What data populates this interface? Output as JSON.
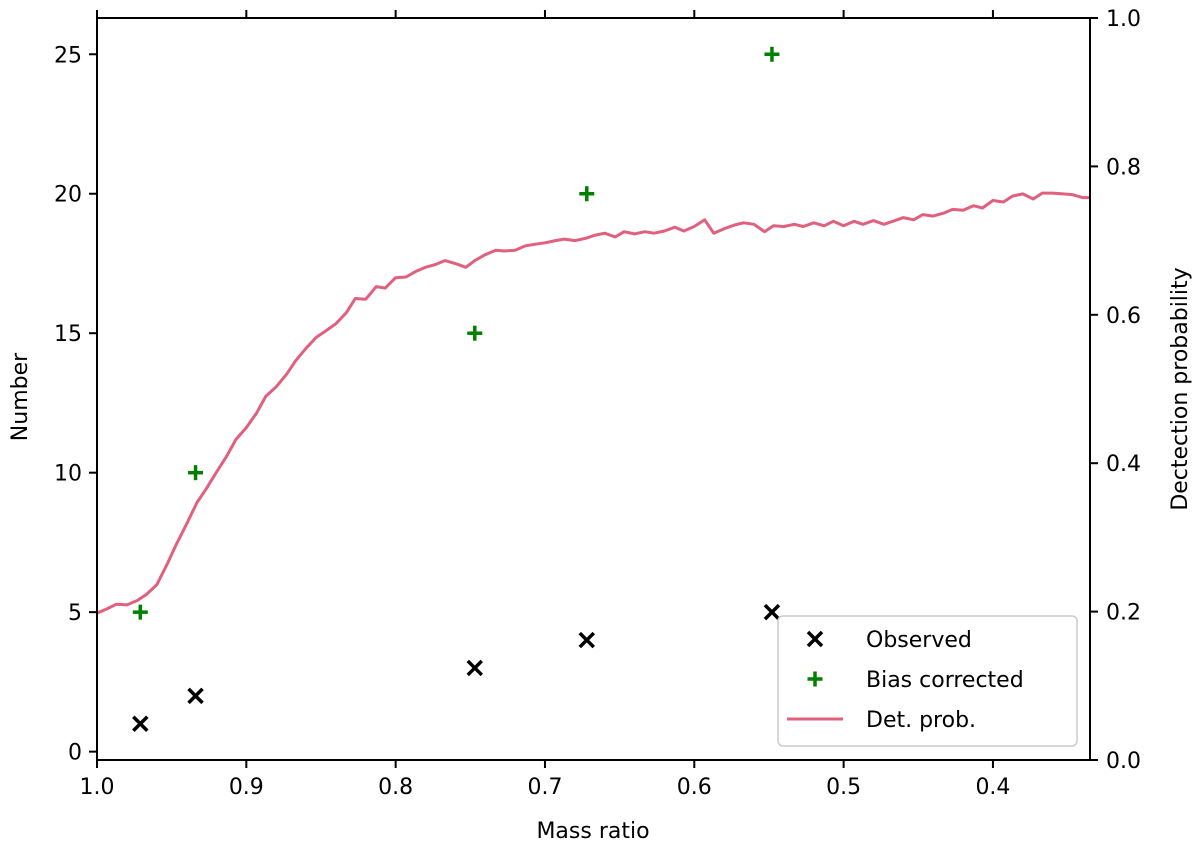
{
  "chart_data": {
    "type": "scatter",
    "title": "",
    "xlabel": "Mass ratio",
    "ylabel": "Number",
    "ylabel_right": "Dectection probability",
    "x_reversed": true,
    "xlim": [
      1.0,
      0.335
    ],
    "ylim": [
      -0.3,
      26.3
    ],
    "ylim_right": [
      0.0,
      1.0
    ],
    "x_ticks": [
      1.0,
      0.9,
      0.8,
      0.7,
      0.6,
      0.5,
      0.4
    ],
    "x_tick_labels": [
      "1.0",
      "0.9",
      "0.8",
      "0.7",
      "0.6",
      "0.5",
      "0.4"
    ],
    "y_ticks": [
      0,
      5,
      10,
      15,
      20,
      25
    ],
    "y_tick_labels": [
      "0",
      "5",
      "10",
      "15",
      "20",
      "25"
    ],
    "y_right_ticks": [
      0.0,
      0.2,
      0.4,
      0.6,
      0.8,
      1.0
    ],
    "y_right_tick_labels": [
      "0.0",
      "0.2",
      "0.4",
      "0.6",
      "0.8",
      "1.0"
    ],
    "grid": false,
    "legend_position": "lower-right",
    "series": [
      {
        "name": "Observed",
        "marker": "x",
        "color": "#000000",
        "axis": "left",
        "x": [
          0.971,
          0.934,
          0.747,
          0.672,
          0.548
        ],
        "y": [
          1,
          2,
          3,
          4,
          5
        ]
      },
      {
        "name": "Bias corrected",
        "marker": "+",
        "color": "#008000",
        "axis": "left",
        "x": [
          0.971,
          0.934,
          0.747,
          0.672,
          0.548
        ],
        "y": [
          5,
          10,
          15,
          20,
          25
        ]
      },
      {
        "name": "Det. prob.",
        "marker": "line",
        "color": "#e0607e",
        "axis": "right",
        "x": [
          1.0,
          0.993,
          0.987,
          0.98,
          0.973,
          0.967,
          0.96,
          0.953,
          0.947,
          0.94,
          0.933,
          0.927,
          0.92,
          0.913,
          0.907,
          0.9,
          0.893,
          0.887,
          0.88,
          0.873,
          0.867,
          0.86,
          0.853,
          0.847,
          0.84,
          0.833,
          0.827,
          0.82,
          0.813,
          0.807,
          0.8,
          0.793,
          0.787,
          0.78,
          0.773,
          0.767,
          0.76,
          0.753,
          0.747,
          0.74,
          0.733,
          0.727,
          0.72,
          0.713,
          0.707,
          0.7,
          0.693,
          0.687,
          0.68,
          0.673,
          0.667,
          0.66,
          0.653,
          0.647,
          0.64,
          0.633,
          0.627,
          0.62,
          0.613,
          0.607,
          0.6,
          0.593,
          0.587,
          0.58,
          0.573,
          0.567,
          0.56,
          0.553,
          0.547,
          0.54,
          0.533,
          0.527,
          0.52,
          0.513,
          0.507,
          0.5,
          0.493,
          0.487,
          0.48,
          0.473,
          0.467,
          0.46,
          0.453,
          0.447,
          0.44,
          0.433,
          0.427,
          0.42,
          0.413,
          0.407,
          0.4,
          0.393,
          0.387,
          0.38,
          0.373,
          0.367,
          0.36,
          0.353,
          0.347,
          0.34,
          0.335
        ],
        "y": [
          0.198,
          0.204,
          0.21,
          0.209,
          0.215,
          0.223,
          0.236,
          0.264,
          0.29,
          0.318,
          0.347,
          0.365,
          0.388,
          0.41,
          0.432,
          0.448,
          0.468,
          0.49,
          0.503,
          0.52,
          0.538,
          0.555,
          0.57,
          0.578,
          0.588,
          0.603,
          0.622,
          0.621,
          0.638,
          0.636,
          0.65,
          0.651,
          0.658,
          0.664,
          0.668,
          0.673,
          0.669,
          0.664,
          0.673,
          0.681,
          0.687,
          0.686,
          0.687,
          0.693,
          0.695,
          0.697,
          0.7,
          0.702,
          0.7,
          0.703,
          0.707,
          0.71,
          0.705,
          0.712,
          0.709,
          0.712,
          0.71,
          0.713,
          0.718,
          0.713,
          0.719,
          0.728,
          0.71,
          0.716,
          0.721,
          0.724,
          0.722,
          0.712,
          0.72,
          0.719,
          0.722,
          0.719,
          0.724,
          0.72,
          0.726,
          0.72,
          0.726,
          0.722,
          0.727,
          0.722,
          0.726,
          0.731,
          0.728,
          0.735,
          0.733,
          0.737,
          0.742,
          0.741,
          0.747,
          0.744,
          0.754,
          0.752,
          0.76,
          0.763,
          0.756,
          0.764,
          0.764,
          0.763,
          0.762,
          0.758,
          0.758
        ]
      }
    ]
  }
}
